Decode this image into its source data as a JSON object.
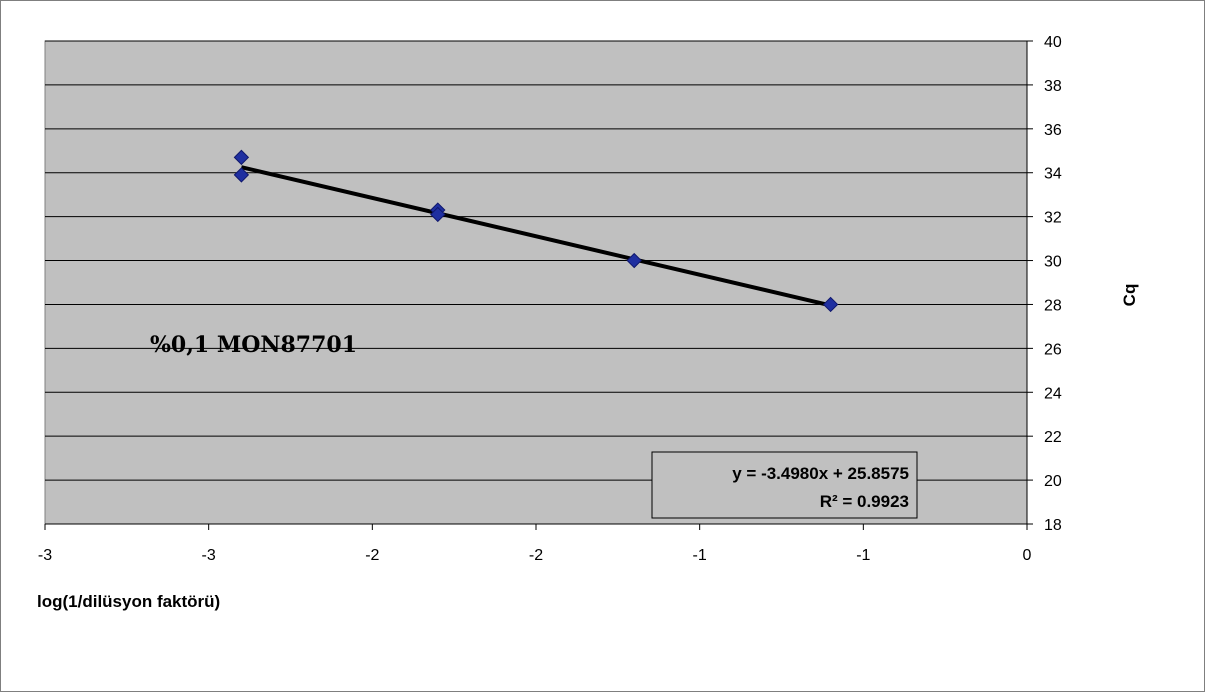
{
  "chart_data": {
    "type": "scatter",
    "xlabel": "log(1/dilüsyon faktörü)",
    "ylabel": "Cq",
    "xlim": [
      -3,
      0
    ],
    "ylim": [
      18,
      40
    ],
    "x_tick_labels": [
      "-3",
      "-3",
      "-2",
      "-2",
      "-1",
      "-1",
      "0"
    ],
    "y_ticks": [
      18,
      20,
      22,
      24,
      26,
      28,
      30,
      32,
      34,
      36,
      38,
      40
    ],
    "y_axis_position": "right",
    "grid": "horizontal",
    "points": [
      {
        "x": -2.4,
        "y": 34.7
      },
      {
        "x": -2.4,
        "y": 33.9
      },
      {
        "x": -1.8,
        "y": 32.3
      },
      {
        "x": -1.8,
        "y": 32.1
      },
      {
        "x": -1.2,
        "y": 30.0
      },
      {
        "x": -0.6,
        "y": 28.0
      }
    ],
    "trendline": {
      "slope": -3.498,
      "intercept": 25.8575,
      "x_range": [
        -2.4,
        -0.6
      ]
    },
    "annotation": "%0,1 MON87701",
    "equation_line1": "y = -3.4980x + 25.8575",
    "equation_line2": "R² = 0.9923",
    "colors": {
      "plot_background": "#c0c0c0",
      "marker": "#1f2fa0",
      "marker_stroke": "#0f176b",
      "trendline": "#000000",
      "grid": "#000000"
    }
  }
}
